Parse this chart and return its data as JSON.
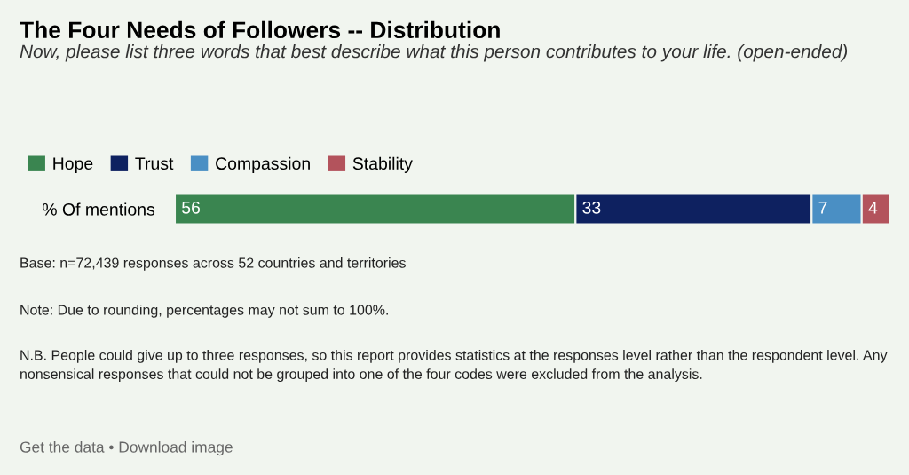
{
  "chart_data": {
    "type": "bar",
    "orientation": "horizontal",
    "stacked": true,
    "title": "The Four Needs of Followers -- Distribution",
    "subtitle": "Now, please list three words that best describe what this person contributes to your life. (open-ended)",
    "categories": [
      "% Of mentions"
    ],
    "series": [
      {
        "name": "Hope",
        "color": "#3a8550",
        "values": [
          56
        ]
      },
      {
        "name": "Trust",
        "color": "#0e2160",
        "values": [
          33
        ]
      },
      {
        "name": "Compassion",
        "color": "#4a8fc4",
        "values": [
          7
        ]
      },
      {
        "name": "Stability",
        "color": "#b3535c",
        "values": [
          4
        ]
      }
    ],
    "data_labels": true,
    "legend": "top left",
    "tick_labels": "y",
    "grid": false,
    "annotations": [
      "Base: n=72,439 responses across 52 countries and territories",
      "Note: Due to rounding, percentages may not sum to 100%.",
      "N.B. People could give up to three responses, so this report provides statistics at the responses level rather than the respondent level. Any nonsensical responses that could not be grouped into one of the four codes were excluded from the analysis.",
      "Get the data • Download image"
    ]
  }
}
